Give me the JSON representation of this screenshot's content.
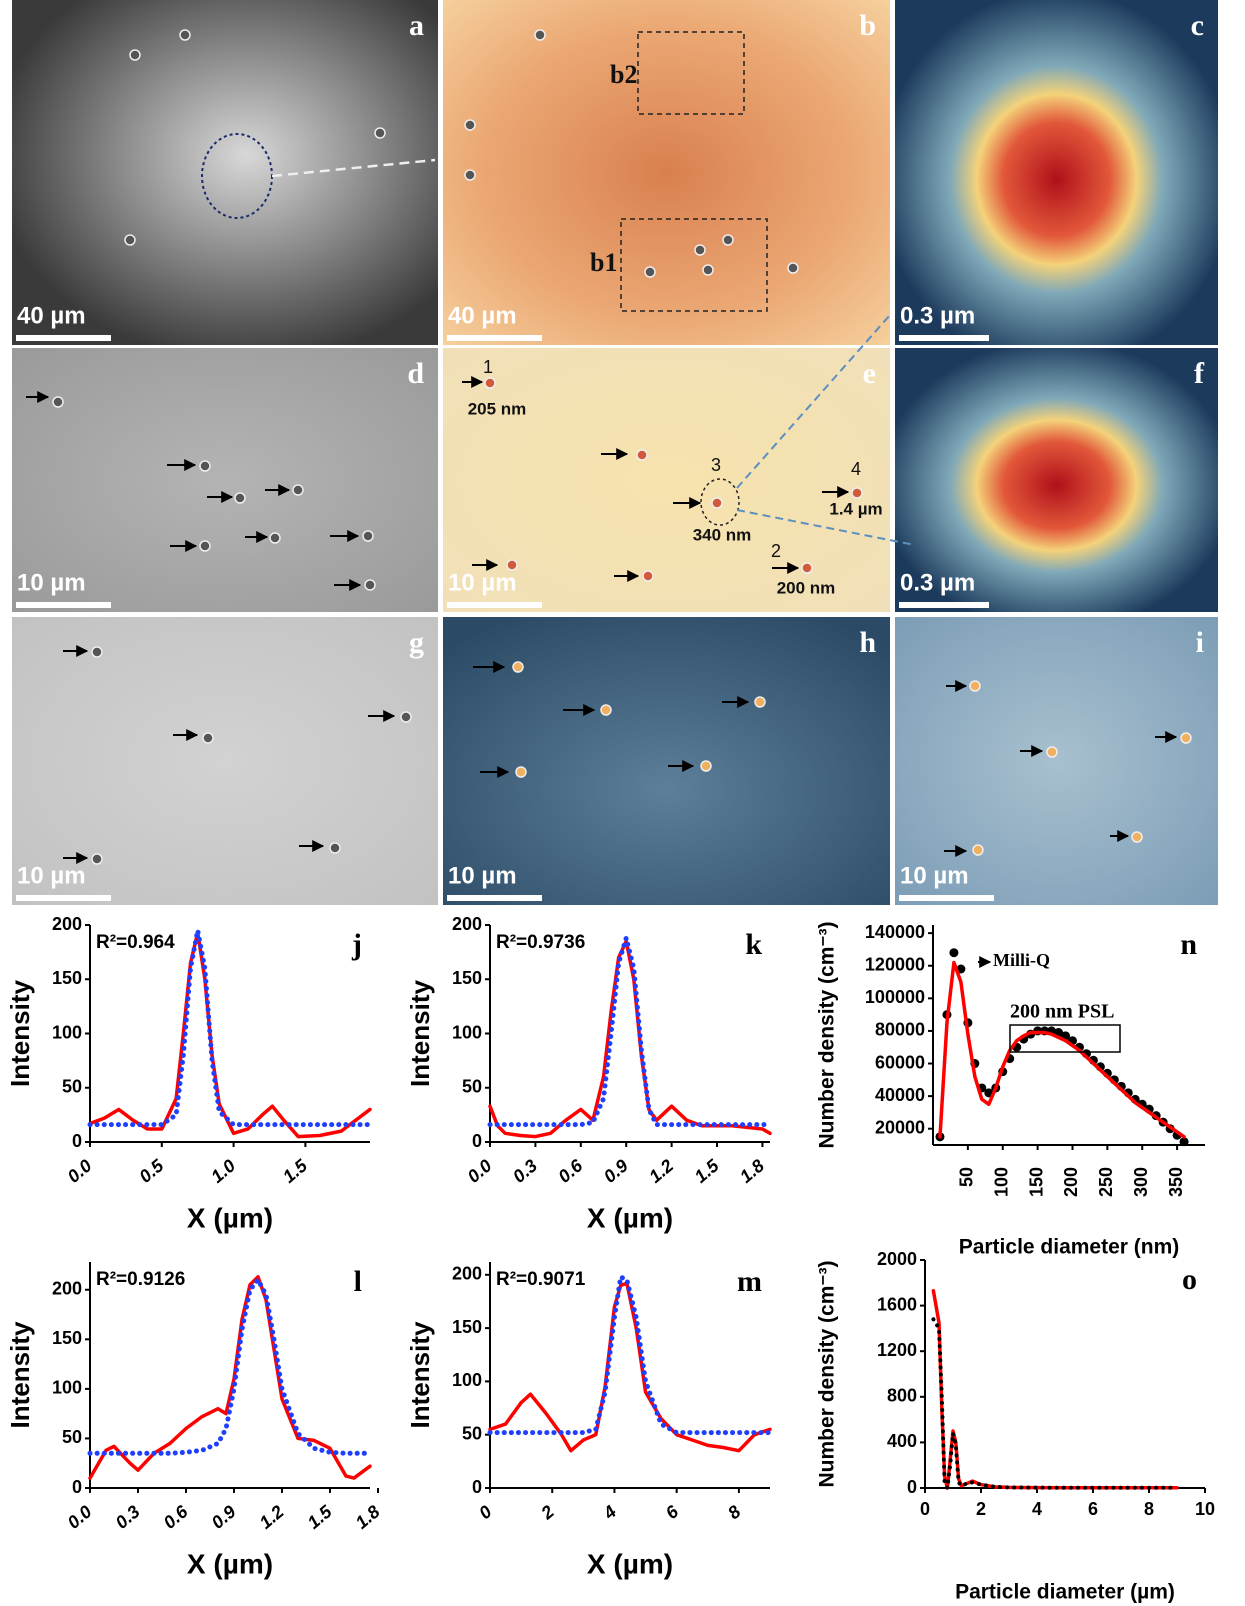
{
  "panels": [
    {
      "letter": "a",
      "scale_bar": "40 µm"
    },
    {
      "letter": "b",
      "scale_bar": "40 µm",
      "labels": [
        "b2",
        "b1"
      ]
    },
    {
      "letter": "c",
      "scale_bar": "0.3 µm"
    },
    {
      "letter": "d",
      "scale_bar": "10 µm"
    },
    {
      "letter": "e",
      "scale_bar": "10 µm",
      "labels": [
        "1",
        "205 nm",
        "3",
        "340 nm",
        "4",
        "1.4 µm",
        "2",
        "200 nm"
      ]
    },
    {
      "letter": "f",
      "scale_bar": "0.3 µm"
    },
    {
      "letter": "g",
      "scale_bar": "10 µm"
    },
    {
      "letter": "h",
      "scale_bar": "10 µm"
    },
    {
      "letter": "i",
      "scale_bar": "10 µm"
    }
  ],
  "chart_data": [
    {
      "type": "line",
      "panel_label": "j",
      "annotation": "R²=0.964",
      "x_label": "X (µm)",
      "y_label": "Intensity",
      "xlim": [
        0,
        1.95
      ],
      "ylim": [
        0,
        200
      ],
      "xticks": [
        {
          "value": 0,
          "label": "0.0"
        },
        0.5,
        {
          "value": 1,
          "label": "1.0"
        },
        1.5
      ],
      "yticks": [
        0,
        50,
        100,
        150,
        200
      ],
      "x": [
        0,
        0.1,
        0.2,
        0.3,
        0.4,
        0.5,
        0.6,
        0.65,
        0.7,
        0.75,
        0.8,
        0.85,
        0.9,
        1.0,
        1.1,
        1.2,
        1.27,
        1.35,
        1.45,
        1.6,
        1.75,
        1.95
      ],
      "series": [
        {
          "color": "#ff0000",
          "style": "solid",
          "values": [
            17,
            22,
            30,
            20,
            12,
            12,
            40,
            100,
            165,
            193,
            150,
            80,
            35,
            8,
            12,
            25,
            33,
            20,
            5,
            6,
            10,
            30
          ]
        },
        {
          "color": "#1f3fff",
          "style": "dotted",
          "values": [
            16,
            16,
            16,
            16,
            16,
            16,
            25,
            80,
            160,
            195,
            160,
            75,
            28,
            16,
            16,
            16,
            16,
            16,
            16,
            16,
            16,
            16
          ]
        }
      ]
    },
    {
      "type": "line",
      "panel_label": "k",
      "annotation": "R²=0.9736",
      "x_label": "X (µm)",
      "y_label": "Intensity",
      "xlim": [
        0,
        1.85
      ],
      "ylim": [
        0,
        200
      ],
      "xticks": [
        {
          "value": 0,
          "label": "0.0"
        },
        0.3,
        0.6,
        0.9,
        1.2,
        1.5,
        1.8
      ],
      "yticks": [
        0,
        50,
        100,
        150,
        200
      ],
      "x": [
        0,
        0.05,
        0.1,
        0.2,
        0.3,
        0.4,
        0.5,
        0.6,
        0.68,
        0.75,
        0.8,
        0.85,
        0.9,
        0.95,
        1.0,
        1.05,
        1.1,
        1.2,
        1.3,
        1.4,
        1.6,
        1.8,
        1.85
      ],
      "series": [
        {
          "color": "#ff0000",
          "style": "solid",
          "values": [
            33,
            15,
            8,
            6,
            5,
            8,
            20,
            30,
            20,
            60,
            120,
            170,
            185,
            150,
            80,
            30,
            20,
            33,
            20,
            15,
            15,
            12,
            8
          ]
        },
        {
          "color": "#1f3fff",
          "style": "dotted",
          "values": [
            16,
            16,
            16,
            16,
            16,
            16,
            16,
            16,
            18,
            40,
            100,
            165,
            188,
            160,
            85,
            30,
            16,
            16,
            16,
            16,
            16,
            16,
            16
          ]
        }
      ]
    },
    {
      "type": "line",
      "panel_label": "l",
      "annotation": "R²=0.9126",
      "x_label": "X (µm)",
      "y_label": "Intensity",
      "xlim": [
        0,
        1.75
      ],
      "ylim": [
        0,
        228
      ],
      "xticks": [
        {
          "value": 0,
          "label": "0.0"
        },
        0.3,
        0.6,
        0.9,
        1.2,
        1.5,
        1.8
      ],
      "yticks": [
        0,
        50,
        100,
        150,
        200
      ],
      "x": [
        0,
        0.1,
        0.15,
        0.25,
        0.3,
        0.4,
        0.5,
        0.6,
        0.7,
        0.8,
        0.85,
        0.9,
        0.95,
        1.0,
        1.05,
        1.1,
        1.15,
        1.2,
        1.3,
        1.4,
        1.5,
        1.6,
        1.65,
        1.75
      ],
      "series": [
        {
          "color": "#ff0000",
          "style": "solid",
          "values": [
            10,
            38,
            42,
            25,
            18,
            35,
            45,
            60,
            72,
            80,
            75,
            110,
            170,
            205,
            213,
            190,
            140,
            90,
            50,
            48,
            40,
            12,
            10,
            22
          ]
        },
        {
          "color": "#1f3fff",
          "style": "dotted",
          "values": [
            35,
            35,
            35,
            35,
            35,
            35,
            35,
            36,
            38,
            45,
            60,
            100,
            160,
            200,
            210,
            195,
            150,
            100,
            55,
            40,
            36,
            35,
            35,
            35
          ]
        }
      ]
    },
    {
      "type": "line",
      "panel_label": "m",
      "annotation": "R²=0.9071",
      "x_label": "X (µm)",
      "y_label": "Intensity",
      "xlim": [
        0,
        9
      ],
      "ylim": [
        0,
        212
      ],
      "xticks": [
        0,
        2,
        4,
        6,
        8
      ],
      "yticks": [
        0,
        50,
        100,
        150,
        200
      ],
      "x": [
        0,
        0.5,
        1,
        1.3,
        1.8,
        2.3,
        2.6,
        3,
        3.4,
        3.7,
        4,
        4.2,
        4.4,
        4.7,
        5,
        5.5,
        6,
        6.5,
        7,
        7.5,
        8,
        8.5,
        9
      ],
      "series": [
        {
          "color": "#ff0000",
          "style": "solid",
          "values": [
            55,
            60,
            80,
            88,
            70,
            50,
            35,
            45,
            50,
            95,
            170,
            190,
            192,
            150,
            90,
            65,
            50,
            45,
            40,
            38,
            35,
            50,
            55
          ]
        },
        {
          "color": "#1f3fff",
          "style": "dotted",
          "values": [
            52,
            52,
            52,
            52,
            52,
            52,
            52,
            52,
            55,
            90,
            160,
            198,
            195,
            160,
            100,
            60,
            52,
            52,
            52,
            52,
            52,
            52,
            52
          ]
        }
      ]
    },
    {
      "type": "line",
      "panel_label": "n",
      "annotations": [
        "Milli-Q",
        "200 nm PSL"
      ],
      "x_label": "Particle diameter (nm)",
      "y_label": "Number density (cm⁻³)",
      "xlim": [
        0,
        390
      ],
      "ylim": [
        10000,
        145000
      ],
      "xticks": [
        50,
        100,
        150,
        200,
        250,
        300,
        350
      ],
      "yticks": [
        20000,
        40000,
        60000,
        80000,
        100000,
        120000,
        140000
      ],
      "x": [
        10,
        20,
        30,
        40,
        50,
        60,
        70,
        80,
        90,
        100,
        110,
        120,
        130,
        140,
        150,
        160,
        170,
        180,
        190,
        200,
        210,
        220,
        230,
        240,
        250,
        260,
        270,
        280,
        290,
        300,
        310,
        320,
        330,
        340,
        350,
        360
      ],
      "series": [
        {
          "color": "#000000",
          "style": "markers",
          "values": [
            15000,
            90000,
            128000,
            118000,
            85000,
            60000,
            45000,
            42000,
            45000,
            55000,
            63000,
            70000,
            75000,
            78000,
            80000,
            80000,
            80000,
            79000,
            77000,
            74000,
            70000,
            66000,
            62000,
            58000,
            54000,
            50000,
            46000,
            42000,
            38000,
            35000,
            32000,
            28000,
            24000,
            20000,
            16000,
            12000
          ]
        },
        {
          "color": "#ff0000",
          "style": "solid",
          "values": [
            15000,
            85000,
            122000,
            110000,
            78000,
            52000,
            38000,
            35000,
            45000,
            58000,
            68000,
            74000,
            77000,
            79000,
            79000,
            79000,
            78000,
            76000,
            74000,
            71000,
            68000,
            64000,
            60000,
            56000,
            52000,
            48000,
            44000,
            40000,
            36000,
            33000,
            30000,
            27000,
            24000,
            21000,
            18000,
            15000
          ]
        }
      ]
    },
    {
      "type": "line",
      "panel_label": "o",
      "x_label": "Particle diameter (µm)",
      "y_label": "Number density (cm⁻³)",
      "xlim": [
        0,
        10
      ],
      "ylim": [
        0,
        2000
      ],
      "xticks": [
        0,
        2,
        4,
        6,
        8,
        10
      ],
      "yticks": [
        0,
        400,
        800,
        1200,
        1600,
        2000
      ],
      "x": [
        0.3,
        0.5,
        0.6,
        0.7,
        0.8,
        0.9,
        1.0,
        1.1,
        1.2,
        1.3,
        1.5,
        1.7,
        2,
        2.5,
        3,
        4,
        5,
        6,
        7,
        8,
        9
      ],
      "series": [
        {
          "color": "#ff0000",
          "style": "solid",
          "values": [
            1730,
            1450,
            700,
            100,
            0,
            250,
            500,
            400,
            80,
            20,
            40,
            60,
            30,
            10,
            5,
            3,
            2,
            2,
            2,
            2,
            2
          ]
        },
        {
          "color": "#000000",
          "style": "dotted-black",
          "values": [
            1480,
            1400,
            800,
            50,
            0,
            200,
            480,
            380,
            50,
            20,
            40,
            50,
            30,
            10,
            5,
            3,
            2,
            2,
            2,
            2,
            2
          ]
        }
      ]
    }
  ]
}
